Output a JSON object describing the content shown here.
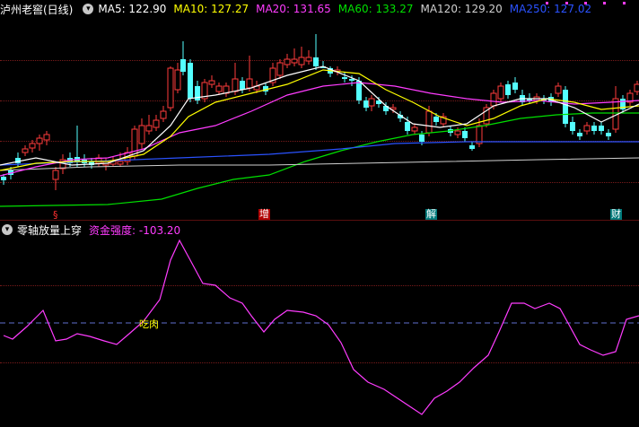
{
  "main_panel": {
    "title": "泸州老窖(日线)",
    "ma_values": [
      {
        "label": "MA5: 122.90",
        "color": "#ffffff"
      },
      {
        "label": "MA10: 127.27",
        "color": "#ffff00"
      },
      {
        "label": "MA20: 131.65",
        "color": "#ff3cff"
      },
      {
        "label": "MA60: 133.27",
        "color": "#00e000"
      },
      {
        "label": "MA120: 129.20",
        "color": "#d0d0d0"
      },
      {
        "label": "MA250: 127.02",
        "color": "#2a52ff"
      }
    ],
    "event_markers": [
      {
        "text": "§",
        "color": "#ff3030",
        "bg": "transparent"
      },
      {
        "text": "增",
        "color": "#ffffff",
        "bg": "#b00000"
      },
      {
        "text": "解",
        "color": "#ffffff",
        "bg": "#00797a"
      },
      {
        "text": "财",
        "color": "#ffffff",
        "bg": "#00797a"
      }
    ]
  },
  "indicator_panel": {
    "name": "零轴放量上穿",
    "value_label": "资金强度: -103.20",
    "annotation": "吃肉"
  },
  "colors": {
    "up_candle": "#ff3c3c",
    "down_candle": "#54ffff",
    "ma5": "#ffffff",
    "ma10": "#ffff00",
    "ma20": "#ff3cff",
    "ma60": "#00e000",
    "ma120": "#d0d0d0",
    "ma250": "#2a52ff",
    "indicator_line": "#ff3cff",
    "zero_line": "#5f6fd0"
  }
}
